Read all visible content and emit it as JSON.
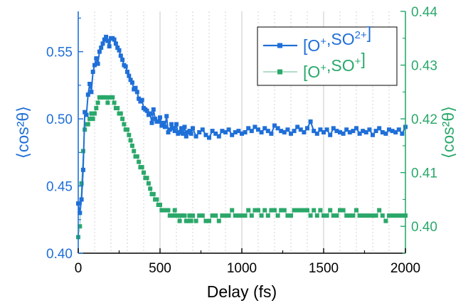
{
  "colors": {
    "left_axis": "#1f6fd8",
    "right_axis": "#2aa86a",
    "series_a": "#1f6fd8",
    "series_b": "#2aa86a",
    "grid": "#c9c9c9",
    "axis": "#000000"
  },
  "chart_data": {
    "type": "scatter",
    "xlabel": "Delay (fs)",
    "ylabel_left": "⟨cos²θ⟩",
    "ylabel_right": "⟨cos²θ⟩",
    "xlim": [
      0,
      2000
    ],
    "ylim_left": [
      0.4,
      0.58
    ],
    "ylim_right": [
      0.395,
      0.44
    ],
    "x_ticks": [
      0,
      500,
      1000,
      1500,
      2000
    ],
    "x_tick_labels": [
      "0",
      "500",
      "1000",
      "1500",
      "2000"
    ],
    "y_left_ticks": [
      0.4,
      0.45,
      0.5,
      0.55
    ],
    "y_left_tick_labels": [
      "0.40",
      "0.45",
      "0.50",
      "0.55"
    ],
    "y_right_ticks": [
      0.4,
      0.41,
      0.42,
      0.43,
      0.44
    ],
    "y_right_tick_labels": [
      "0.40",
      "0.41",
      "0.42",
      "0.43",
      "0.44"
    ],
    "grid": "vertical dotted",
    "legend_placement": "top-right",
    "legend": [
      {
        "base": "[O",
        "sup1": "+",
        "mid": ",SO",
        "sup2": "2+",
        "end": "]"
      },
      {
        "base": "[O",
        "sup1": "+",
        "mid": ",SO",
        "sup2": "+",
        "end": "]"
      }
    ],
    "series": [
      {
        "name": "[O+,SO2+]",
        "axis": "left",
        "style": "line+square",
        "x": [
          0,
          10,
          20,
          30,
          40,
          50,
          60,
          70,
          80,
          90,
          100,
          110,
          120,
          130,
          140,
          150,
          160,
          170,
          180,
          190,
          200,
          210,
          220,
          230,
          240,
          250,
          260,
          270,
          280,
          290,
          300,
          310,
          320,
          330,
          340,
          350,
          360,
          370,
          380,
          390,
          400,
          410,
          420,
          430,
          440,
          450,
          460,
          470,
          480,
          490,
          500,
          510,
          520,
          530,
          540,
          550,
          560,
          570,
          580,
          590,
          600,
          610,
          620,
          630,
          640,
          650,
          660,
          670,
          680,
          690,
          700,
          720,
          740,
          760,
          780,
          800,
          820,
          840,
          860,
          880,
          900,
          920,
          940,
          960,
          980,
          1000,
          1020,
          1040,
          1060,
          1080,
          1100,
          1120,
          1140,
          1160,
          1180,
          1200,
          1220,
          1240,
          1260,
          1280,
          1300,
          1320,
          1340,
          1360,
          1380,
          1400,
          1420,
          1440,
          1460,
          1480,
          1500,
          1520,
          1540,
          1560,
          1580,
          1600,
          1620,
          1640,
          1660,
          1680,
          1700,
          1720,
          1740,
          1760,
          1780,
          1800,
          1820,
          1840,
          1860,
          1880,
          1900,
          1920,
          1940,
          1960,
          1980,
          2000
        ],
        "y": [
          0.437,
          0.43,
          0.44,
          0.462,
          0.505,
          0.503,
          0.518,
          0.526,
          0.52,
          0.535,
          0.54,
          0.545,
          0.541,
          0.55,
          0.553,
          0.556,
          0.559,
          0.561,
          0.558,
          0.554,
          0.56,
          0.56,
          0.559,
          0.556,
          0.553,
          0.551,
          0.547,
          0.544,
          0.54,
          0.539,
          0.535,
          0.532,
          0.529,
          0.527,
          0.522,
          0.523,
          0.52,
          0.515,
          0.513,
          0.514,
          0.508,
          0.507,
          0.506,
          0.503,
          0.504,
          0.497,
          0.507,
          0.5,
          0.498,
          0.498,
          0.501,
          0.495,
          0.497,
          0.494,
          0.502,
          0.49,
          0.492,
          0.496,
          0.493,
          0.491,
          0.496,
          0.489,
          0.49,
          0.493,
          0.489,
          0.494,
          0.487,
          0.49,
          0.491,
          0.489,
          0.493,
          0.487,
          0.49,
          0.492,
          0.488,
          0.486,
          0.491,
          0.489,
          0.487,
          0.491,
          0.49,
          0.492,
          0.488,
          0.49,
          0.491,
          0.489,
          0.49,
          0.493,
          0.491,
          0.494,
          0.492,
          0.49,
          0.493,
          0.491,
          0.489,
          0.495,
          0.493,
          0.491,
          0.49,
          0.492,
          0.489,
          0.491,
          0.494,
          0.492,
          0.49,
          0.493,
          0.498,
          0.491,
          0.489,
          0.492,
          0.49,
          0.492,
          0.488,
          0.493,
          0.491,
          0.49,
          0.489,
          0.492,
          0.49,
          0.491,
          0.493,
          0.489,
          0.491,
          0.49,
          0.492,
          0.488,
          0.491,
          0.493,
          0.49,
          0.489,
          0.492,
          0.491,
          0.49,
          0.492,
          0.489,
          0.494
        ]
      },
      {
        "name": "[O+,SO+]",
        "axis": "right",
        "style": "thin-line+square",
        "x": [
          0,
          10,
          20,
          30,
          40,
          50,
          60,
          70,
          80,
          90,
          100,
          110,
          120,
          130,
          140,
          150,
          160,
          170,
          180,
          190,
          200,
          210,
          220,
          230,
          240,
          250,
          260,
          270,
          280,
          290,
          300,
          310,
          320,
          330,
          340,
          350,
          360,
          370,
          380,
          390,
          400,
          410,
          420,
          430,
          440,
          450,
          460,
          470,
          480,
          490,
          500,
          510,
          520,
          530,
          540,
          550,
          560,
          570,
          580,
          590,
          600,
          610,
          620,
          630,
          640,
          650,
          660,
          670,
          680,
          690,
          700,
          720,
          740,
          760,
          780,
          800,
          820,
          840,
          860,
          880,
          900,
          920,
          940,
          960,
          980,
          1000,
          1020,
          1040,
          1060,
          1080,
          1100,
          1120,
          1140,
          1160,
          1180,
          1200,
          1220,
          1240,
          1260,
          1280,
          1300,
          1320,
          1340,
          1360,
          1380,
          1400,
          1420,
          1440,
          1460,
          1480,
          1500,
          1520,
          1540,
          1560,
          1580,
          1600,
          1620,
          1640,
          1660,
          1680,
          1700,
          1720,
          1740,
          1760,
          1780,
          1800,
          1820,
          1840,
          1860,
          1880,
          1900,
          1920,
          1940,
          1960,
          1980,
          2000
        ],
        "y": [
          0.398,
          0.4,
          0.408,
          0.414,
          0.418,
          0.419,
          0.419,
          0.42,
          0.421,
          0.42,
          0.421,
          0.422,
          0.423,
          0.424,
          0.424,
          0.424,
          0.424,
          0.424,
          0.423,
          0.424,
          0.424,
          0.424,
          0.423,
          0.422,
          0.422,
          0.421,
          0.421,
          0.42,
          0.419,
          0.418,
          0.418,
          0.417,
          0.416,
          0.415,
          0.414,
          0.413,
          0.413,
          0.412,
          0.411,
          0.411,
          0.41,
          0.409,
          0.409,
          0.408,
          0.407,
          0.406,
          0.406,
          0.405,
          0.405,
          0.404,
          0.404,
          0.403,
          0.403,
          0.403,
          0.403,
          0.403,
          0.402,
          0.402,
          0.402,
          0.403,
          0.402,
          0.402,
          0.401,
          0.402,
          0.402,
          0.402,
          0.401,
          0.401,
          0.402,
          0.401,
          0.402,
          0.401,
          0.402,
          0.402,
          0.401,
          0.401,
          0.402,
          0.402,
          0.401,
          0.402,
          0.402,
          0.402,
          0.403,
          0.402,
          0.402,
          0.402,
          0.402,
          0.403,
          0.402,
          0.403,
          0.403,
          0.402,
          0.403,
          0.402,
          0.403,
          0.403,
          0.402,
          0.403,
          0.403,
          0.402,
          0.402,
          0.403,
          0.403,
          0.403,
          0.403,
          0.403,
          0.402,
          0.403,
          0.402,
          0.403,
          0.402,
          0.402,
          0.403,
          0.402,
          0.402,
          0.403,
          0.403,
          0.402,
          0.402,
          0.402,
          0.403,
          0.402,
          0.402,
          0.402,
          0.402,
          0.402,
          0.402,
          0.403,
          0.402,
          0.401,
          0.402,
          0.402,
          0.402,
          0.402,
          0.402,
          0.402
        ]
      }
    ]
  }
}
